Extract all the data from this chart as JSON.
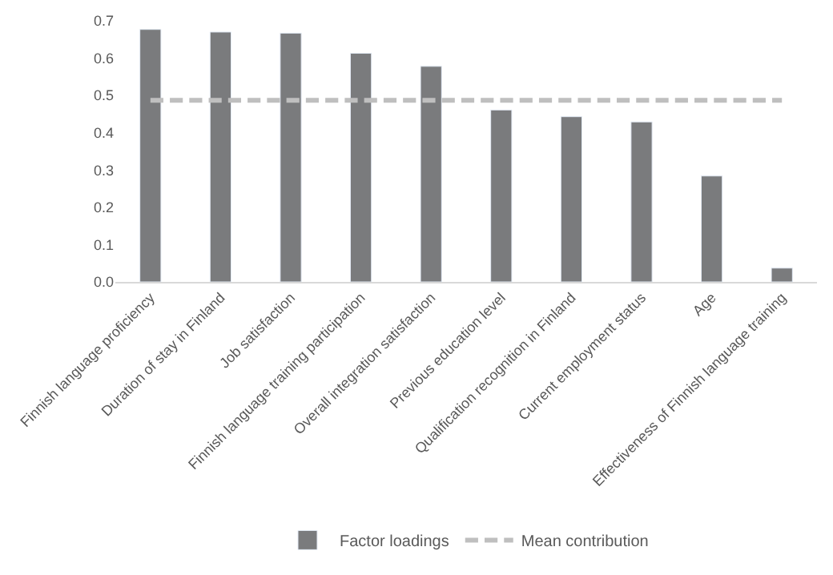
{
  "chart_data": {
    "type": "bar",
    "categories": [
      "Finnish language proficiency",
      "Duration of stay in Finland",
      "Job satisfaction",
      "Finnish language training participation",
      "Overall integration satisfaction",
      "Previous education level",
      "Qualification recognition in Finland",
      "Current employment status",
      "Age",
      "Effectiveness of Finnish language training"
    ],
    "series": [
      {
        "name": "Factor loadings",
        "color": "#7a7b7d",
        "values": [
          0.677,
          0.67,
          0.667,
          0.613,
          0.578,
          0.461,
          0.443,
          0.429,
          0.284,
          0.037
        ]
      },
      {
        "name": "Mean contribution",
        "type": "line",
        "line_style": "dashed",
        "color": "#bfbfbf",
        "values": [
          0.487,
          0.487,
          0.487,
          0.487,
          0.487,
          0.487,
          0.487,
          0.487,
          0.487,
          0.487
        ]
      }
    ],
    "ylim": [
      0,
      0.7
    ],
    "yticks": [
      {
        "value": 0,
        "label": "0.0"
      },
      0.1,
      0.2,
      0.3,
      0.4,
      0.5,
      0.6,
      0.7
    ],
    "legend": "bottom"
  }
}
